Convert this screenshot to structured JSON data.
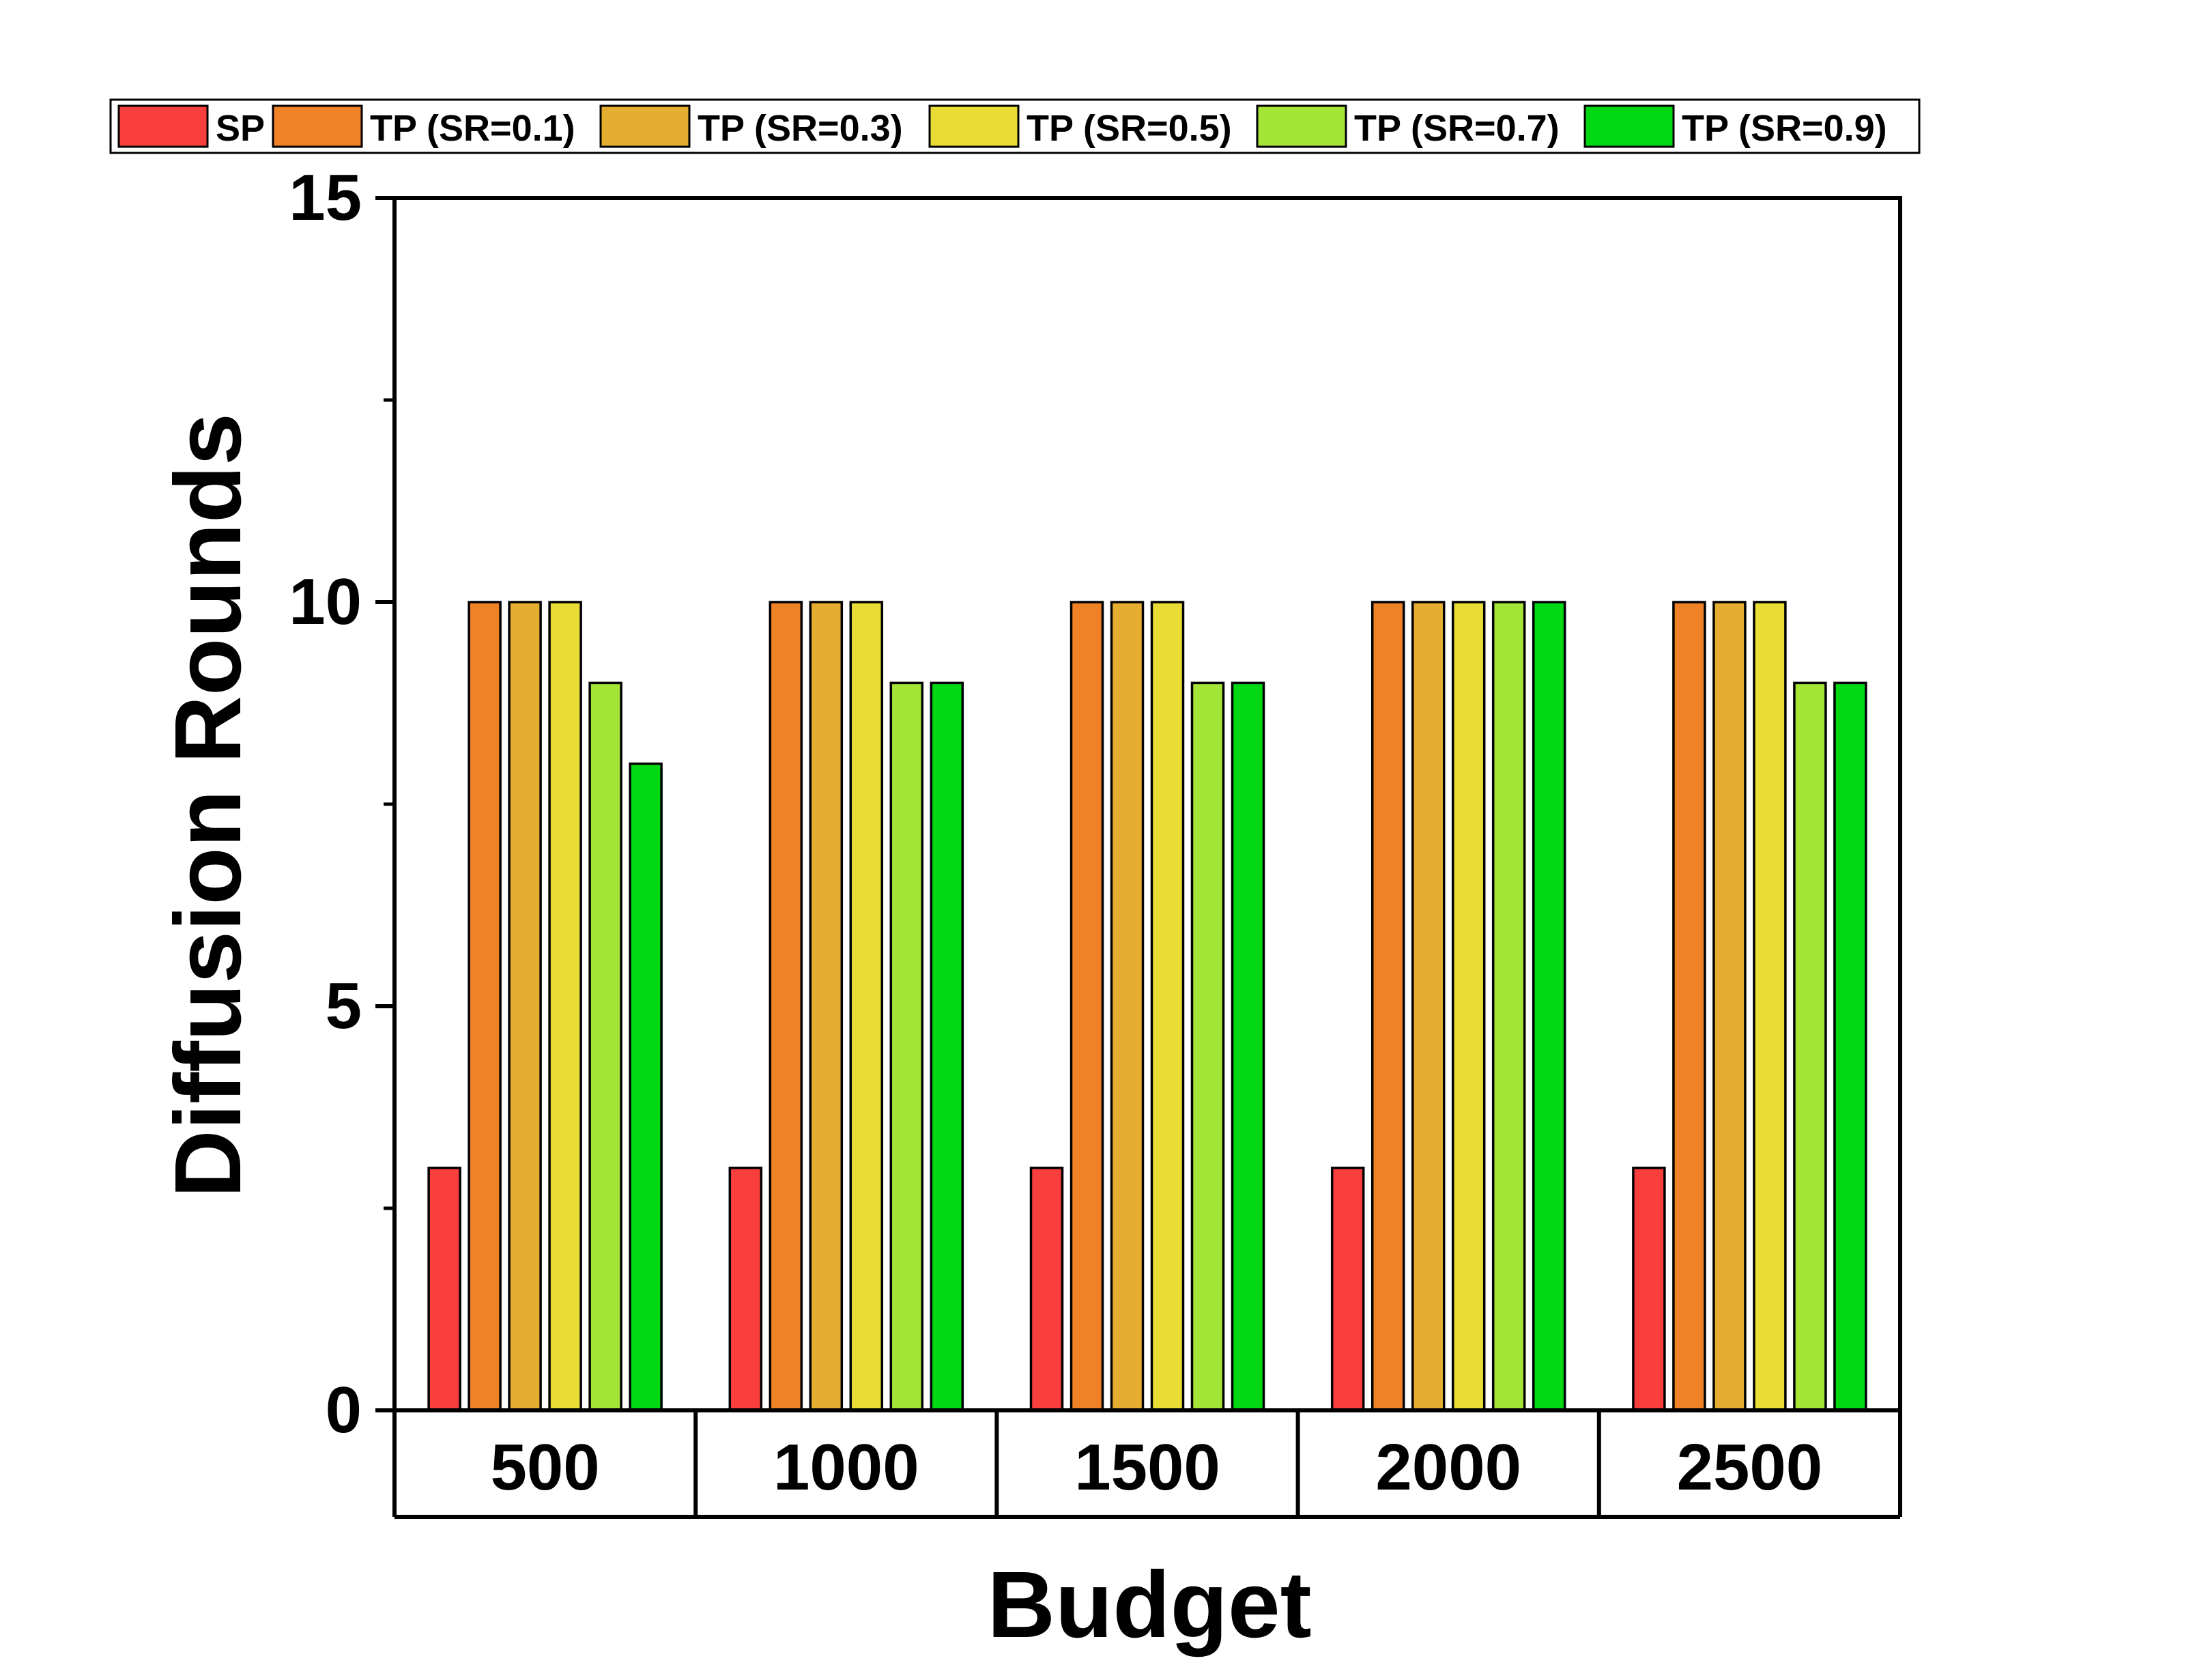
{
  "chart_data": {
    "type": "bar",
    "title": "",
    "xlabel": "Budget",
    "ylabel": "Diffusion Rounds",
    "categories": [
      "500",
      "1000",
      "1500",
      "2000",
      "2500"
    ],
    "ylim": [
      0,
      15
    ],
    "yticks": [
      0,
      5,
      10,
      15
    ],
    "grid": false,
    "legend_position": "top",
    "series": [
      {
        "name": "SP",
        "color": "#f93e3e",
        "values": [
          3,
          3,
          3,
          3,
          3
        ]
      },
      {
        "name": "TP (SR=0.1)",
        "color": "#ef8126",
        "values": [
          10,
          10,
          10,
          10,
          10
        ]
      },
      {
        "name": "TP (SR=0.3)",
        "color": "#e6ae30",
        "values": [
          10,
          10,
          10,
          10,
          10
        ]
      },
      {
        "name": "TP (SR=0.5)",
        "color": "#e8dc35",
        "values": [
          10,
          10,
          10,
          10,
          10
        ]
      },
      {
        "name": "TP (SR=0.7)",
        "color": "#a4e538",
        "values": [
          9,
          9,
          9,
          10,
          9
        ]
      },
      {
        "name": "TP (SR=0.9)",
        "color": "#00d814",
        "values": [
          8,
          9,
          9,
          10,
          9
        ]
      }
    ]
  }
}
